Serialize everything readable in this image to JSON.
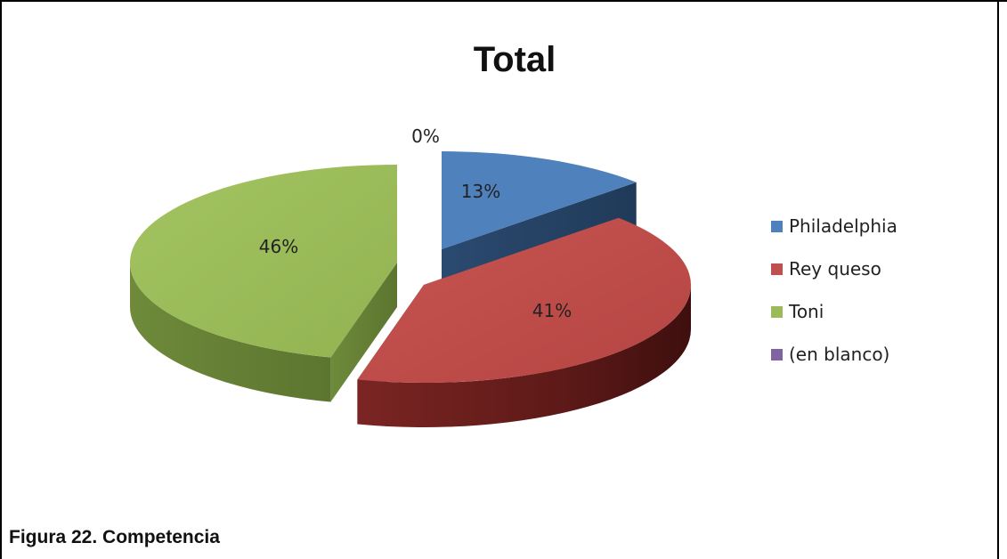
{
  "caption": "Figura 22. Competencia",
  "chart_data": {
    "type": "pie",
    "title": "Total",
    "exploded": true,
    "three_d": true,
    "legend_position": "right",
    "slices": [
      {
        "name": "Philadelphia",
        "value": 13,
        "label": "13%",
        "color": "#4F81BD"
      },
      {
        "name": "Rey queso",
        "value": 41,
        "label": "41%",
        "color": "#C0504D"
      },
      {
        "name": "Toni",
        "value": 46,
        "label": "46%",
        "color": "#9BBB59"
      },
      {
        "name": "(en blanco)",
        "value": 0,
        "label": "0%",
        "color": "#8064A2"
      }
    ]
  }
}
